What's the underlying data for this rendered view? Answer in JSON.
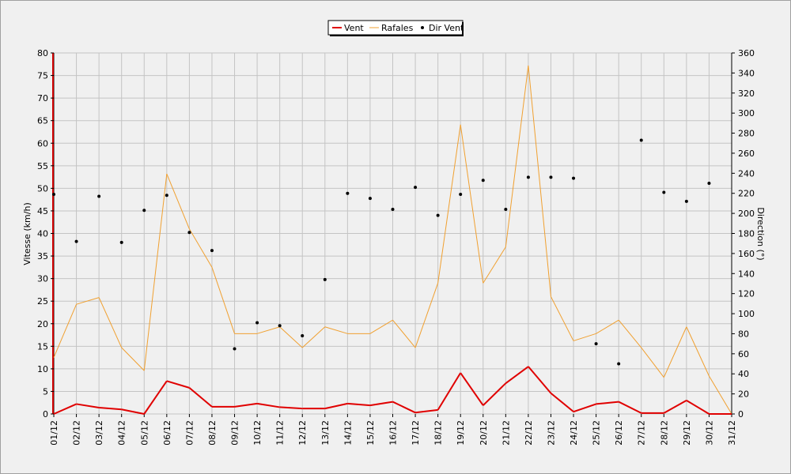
{
  "chart_data": {
    "type": "line",
    "categories": [
      "01/12",
      "02/12",
      "03/12",
      "04/12",
      "05/12",
      "06/12",
      "07/12",
      "08/12",
      "09/12",
      "10/12",
      "11/12",
      "12/12",
      "13/12",
      "14/12",
      "15/12",
      "16/12",
      "17/12",
      "18/12",
      "19/12",
      "20/12",
      "21/12",
      "22/12",
      "23/12",
      "24/12",
      "25/12",
      "26/12",
      "27/12",
      "28/12",
      "29/12",
      "30/12",
      "31/12"
    ],
    "series": [
      {
        "name": "Vent",
        "axis": "left",
        "style": "line",
        "color": "#e00000",
        "values": [
          0,
          2.2,
          1.4,
          1,
          0,
          7.3,
          5.8,
          1.6,
          1.6,
          2.3,
          1.5,
          1.2,
          1.2,
          2.3,
          1.9,
          2.7,
          0.3,
          0.9,
          9.1,
          1.9,
          6.8,
          10.5,
          4.6,
          0.5,
          2.2,
          2.7,
          0.2,
          0.2,
          3,
          0,
          0
        ]
      },
      {
        "name": "Rafales",
        "axis": "left",
        "style": "line",
        "color": "#f0a030",
        "values": [
          12.5,
          24.3,
          25.8,
          14.7,
          9.6,
          53.2,
          41,
          32.5,
          17.8,
          17.8,
          19.3,
          14.7,
          19.3,
          17.8,
          17.8,
          20.8,
          14.7,
          29,
          64.1,
          29,
          37,
          77.2,
          26,
          16.2,
          17.8,
          20.8,
          14.7,
          8.1,
          19.3,
          8.4,
          0
        ]
      },
      {
        "name": "Dir Vent",
        "axis": "right",
        "style": "points",
        "color": "#000000",
        "values": [
          219,
          172,
          217,
          171,
          203,
          218,
          181,
          163,
          65,
          91,
          88,
          78,
          134,
          220,
          215,
          204,
          226,
          198,
          219,
          233,
          204,
          236,
          236,
          235,
          70,
          50,
          273,
          221,
          212,
          230,
          null
        ]
      }
    ],
    "left_axis": {
      "label": "Vitesse (km/h)",
      "ylim": [
        0,
        80
      ],
      "ticks": [
        "0",
        "5",
        "10",
        "15",
        "20",
        "25",
        "30",
        "35",
        "40",
        "45",
        "50",
        "55",
        "60",
        "65",
        "70",
        "75",
        "80"
      ]
    },
    "right_axis": {
      "label": "Direction (°)",
      "ylim": [
        0,
        360
      ],
      "ticks": [
        "0",
        "20",
        "40",
        "60",
        "80",
        "100",
        "120",
        "140",
        "160",
        "180",
        "200",
        "220",
        "240",
        "260",
        "280",
        "300",
        "320",
        "340",
        "360"
      ]
    },
    "grid": true,
    "legend_position": "top-center"
  }
}
